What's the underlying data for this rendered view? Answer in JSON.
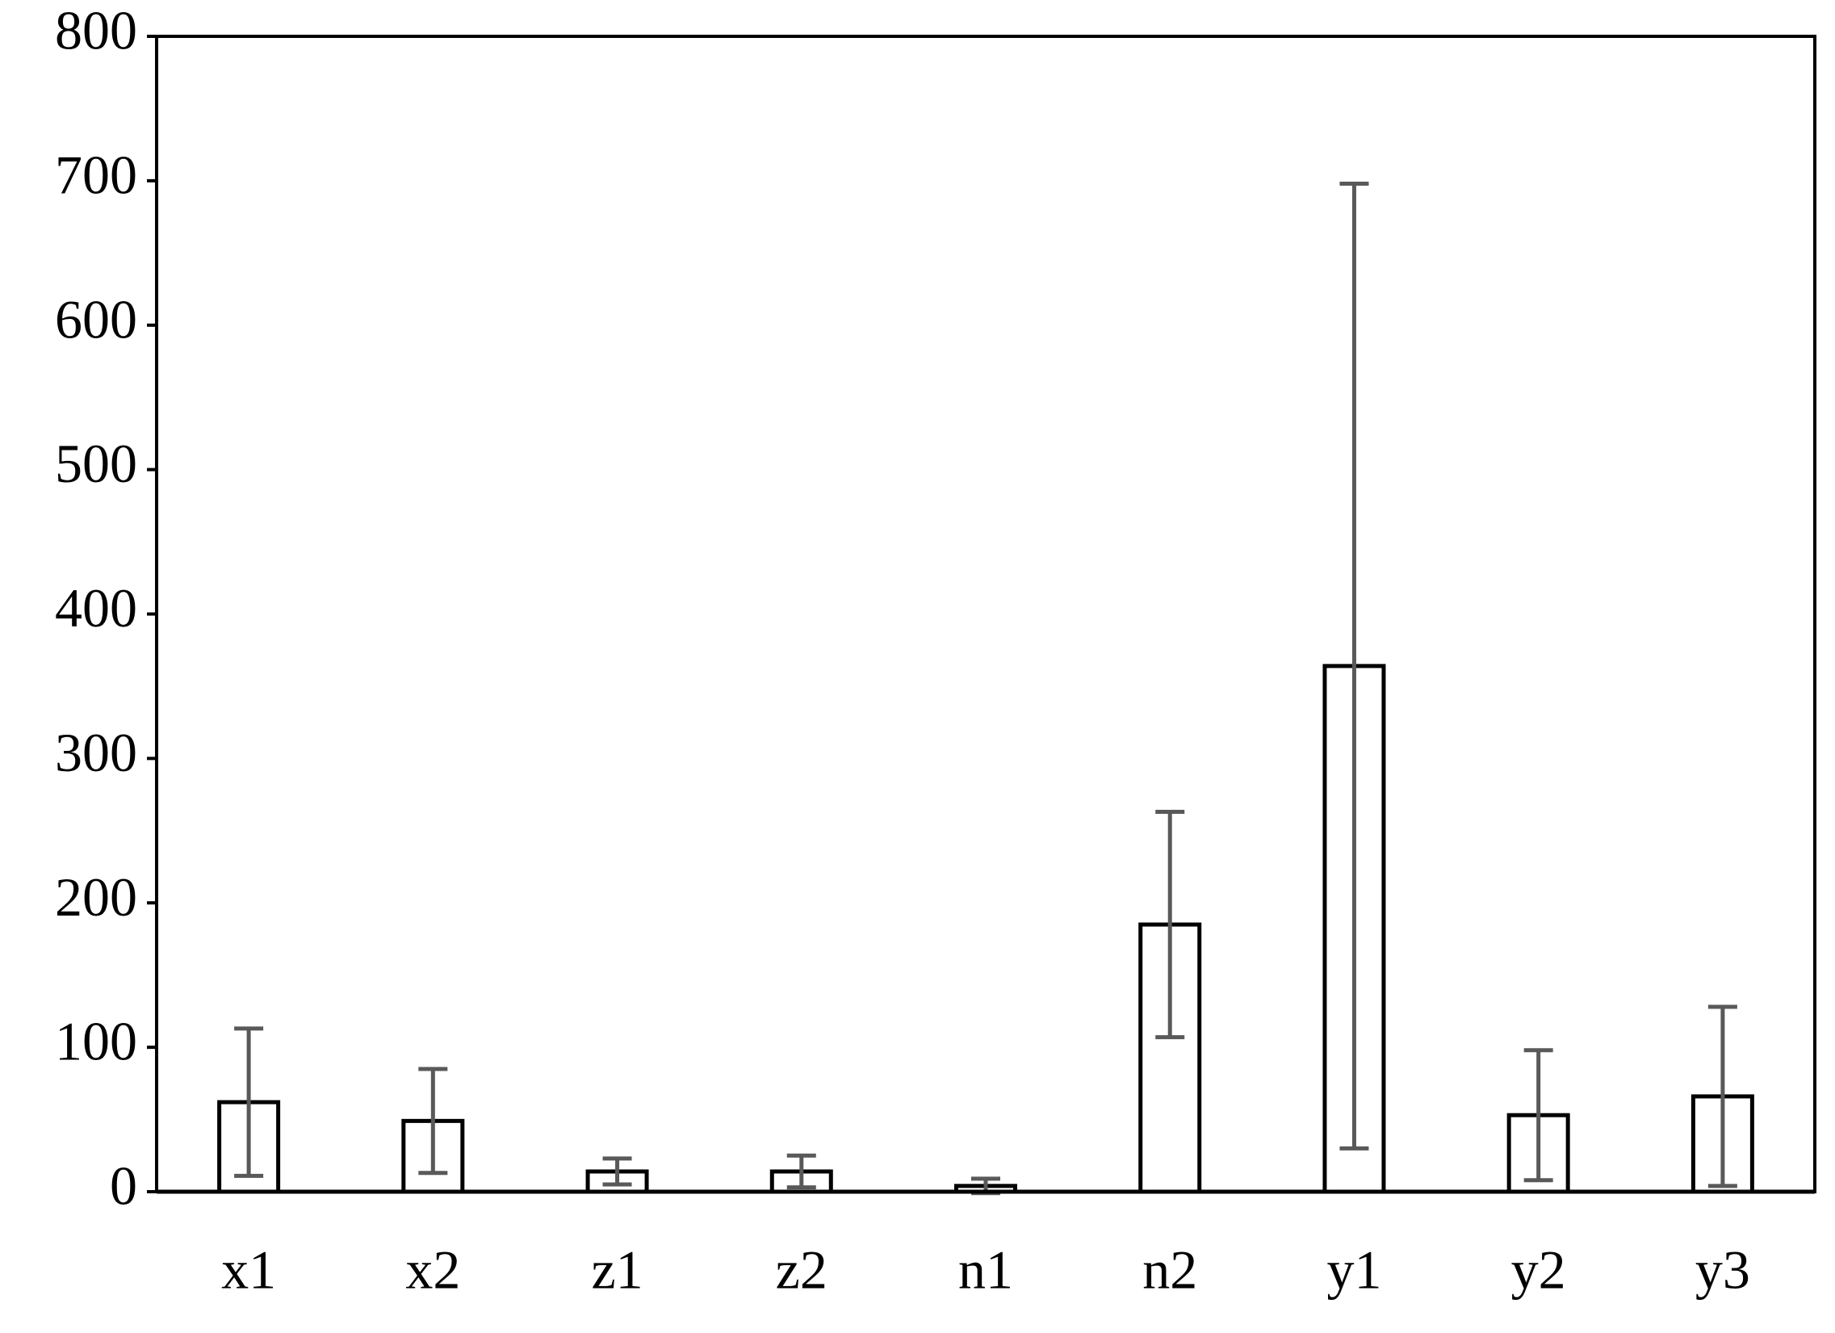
{
  "chart_data": {
    "type": "bar",
    "categories": [
      "x1",
      "x2",
      "z1",
      "z2",
      "n1",
      "n2",
      "y1",
      "y2",
      "y3"
    ],
    "values": [
      62,
      49,
      14,
      14,
      4,
      185,
      364,
      53,
      66
    ],
    "errors": [
      51,
      36,
      9,
      11,
      5,
      78,
      334,
      45,
      62
    ],
    "color": "#ffffff",
    "edge_color": "#000000",
    "error_color": "#595959",
    "ylim": [
      0,
      800
    ],
    "yticks": [
      0,
      100,
      200,
      300,
      400,
      500,
      600,
      700,
      800
    ]
  }
}
